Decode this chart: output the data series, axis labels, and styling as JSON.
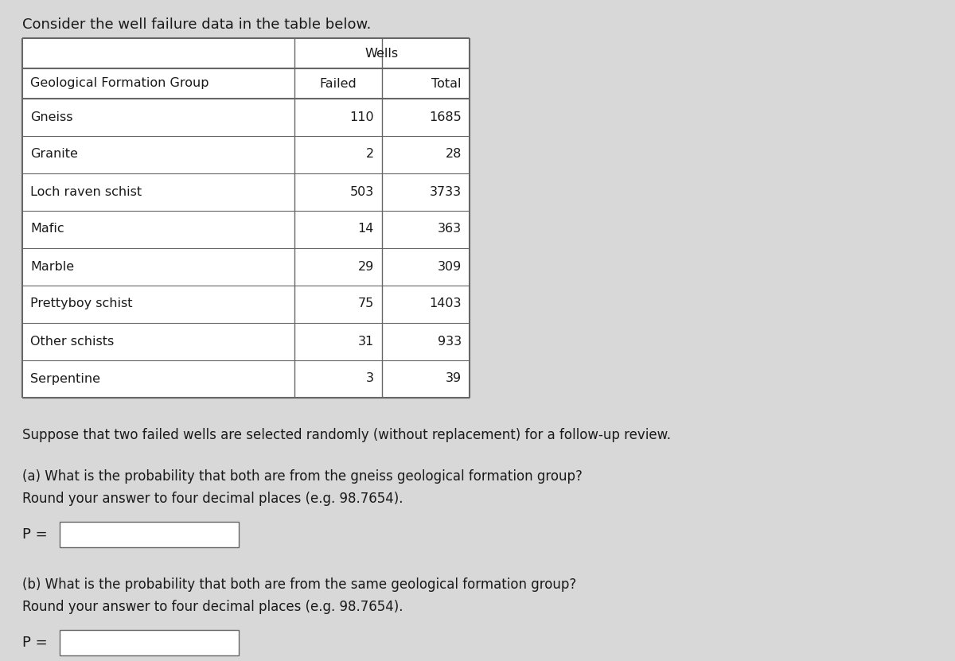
{
  "title": "Consider the well failure data in the table below.",
  "table_header_group": "Wells",
  "table_col1_header": "Geological Formation Group",
  "table_col2_header": "Failed",
  "table_col3_header": "Total",
  "rows": [
    [
      "Gneiss",
      "110",
      "1685"
    ],
    [
      "Granite",
      "2",
      "28"
    ],
    [
      "Loch raven schist",
      "503",
      "3733"
    ],
    [
      "Mafic",
      "14",
      "363"
    ],
    [
      "Marble",
      "29",
      "309"
    ],
    [
      "Prettyboy schist",
      "75",
      "1403"
    ],
    [
      "Other schists",
      "31",
      "933"
    ],
    [
      "Serpentine",
      "3",
      "39"
    ]
  ],
  "paragraph1": "Suppose that two failed wells are selected randomly (without replacement) for a follow-up review.",
  "part_a_line1": "(a) What is the probability that both are from the gneiss geological formation group?",
  "part_a_line2": "Round your answer to four decimal places (e.g. 98.7654).",
  "part_a_label": "P =",
  "part_b_line1": "(b) What is the probability that both are from the same geological formation group?",
  "part_b_line2": "Round your answer to four decimal places (e.g. 98.7654).",
  "part_b_label": "P =",
  "bg_color": "#d8d8d8",
  "text_color": "#1a1a1a",
  "border_color": "#666666",
  "font_size_title": 13,
  "font_size_table": 11.5,
  "font_size_body": 12
}
